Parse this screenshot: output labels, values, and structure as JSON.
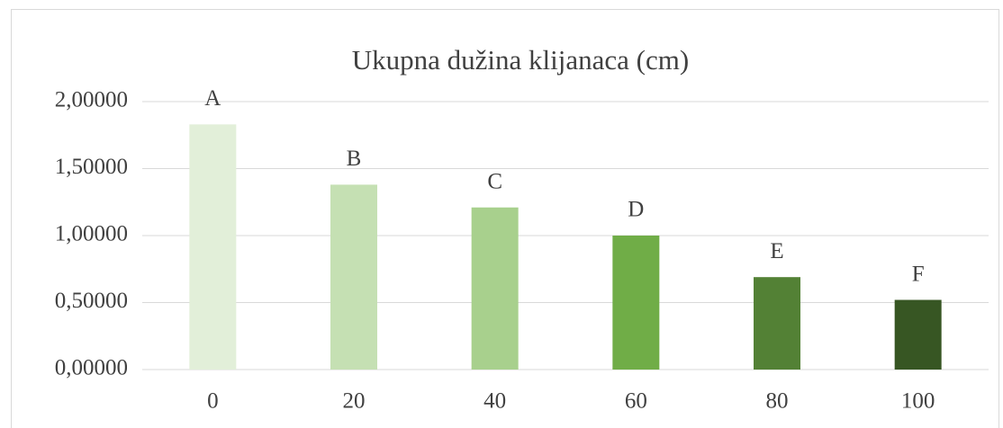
{
  "chart_data": {
    "type": "bar",
    "title": "Ukupna dužina klijanaca (cm)",
    "categories": [
      "0",
      "20",
      "40",
      "60",
      "80",
      "100"
    ],
    "values": [
      1.83,
      1.38,
      1.21,
      1.0,
      0.69,
      0.52
    ],
    "annotations": [
      "A",
      "B",
      "C",
      "D",
      "E",
      "F"
    ],
    "colors": [
      "#e2efd9",
      "#c5e0b3",
      "#a8d08d",
      "#70ad47",
      "#538135",
      "#375623"
    ],
    "ylim": [
      0,
      2
    ],
    "yticks": [
      {
        "value": 0,
        "label": "0,00000"
      },
      {
        "value": 0.5,
        "label": "0,50000"
      },
      {
        "value": 1,
        "label": "1,00000"
      },
      {
        "value": 1.5,
        "label": "1,50000"
      },
      {
        "value": 2,
        "label": "2,00000"
      }
    ],
    "grid": true
  }
}
